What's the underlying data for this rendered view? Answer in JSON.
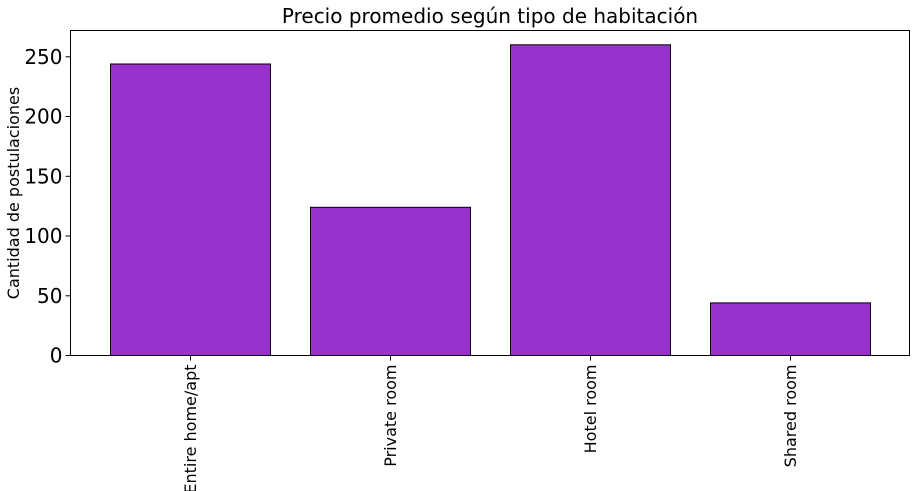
{
  "chart_data": {
    "type": "bar",
    "title": "Precio promedio según tipo de habitación",
    "xlabel": "",
    "ylabel": "Cantidad de postulaciones",
    "categories": [
      "Entire home/apt",
      "Private room",
      "Hotel room",
      "Shared room"
    ],
    "values": [
      244,
      124,
      260,
      44
    ],
    "ylim": [
      0,
      272
    ],
    "yticks": [
      0,
      50,
      100,
      150,
      200,
      250
    ],
    "grid": false,
    "legend": "none",
    "bar_color": "#9932CC",
    "bar_edge_color": "#000000"
  }
}
